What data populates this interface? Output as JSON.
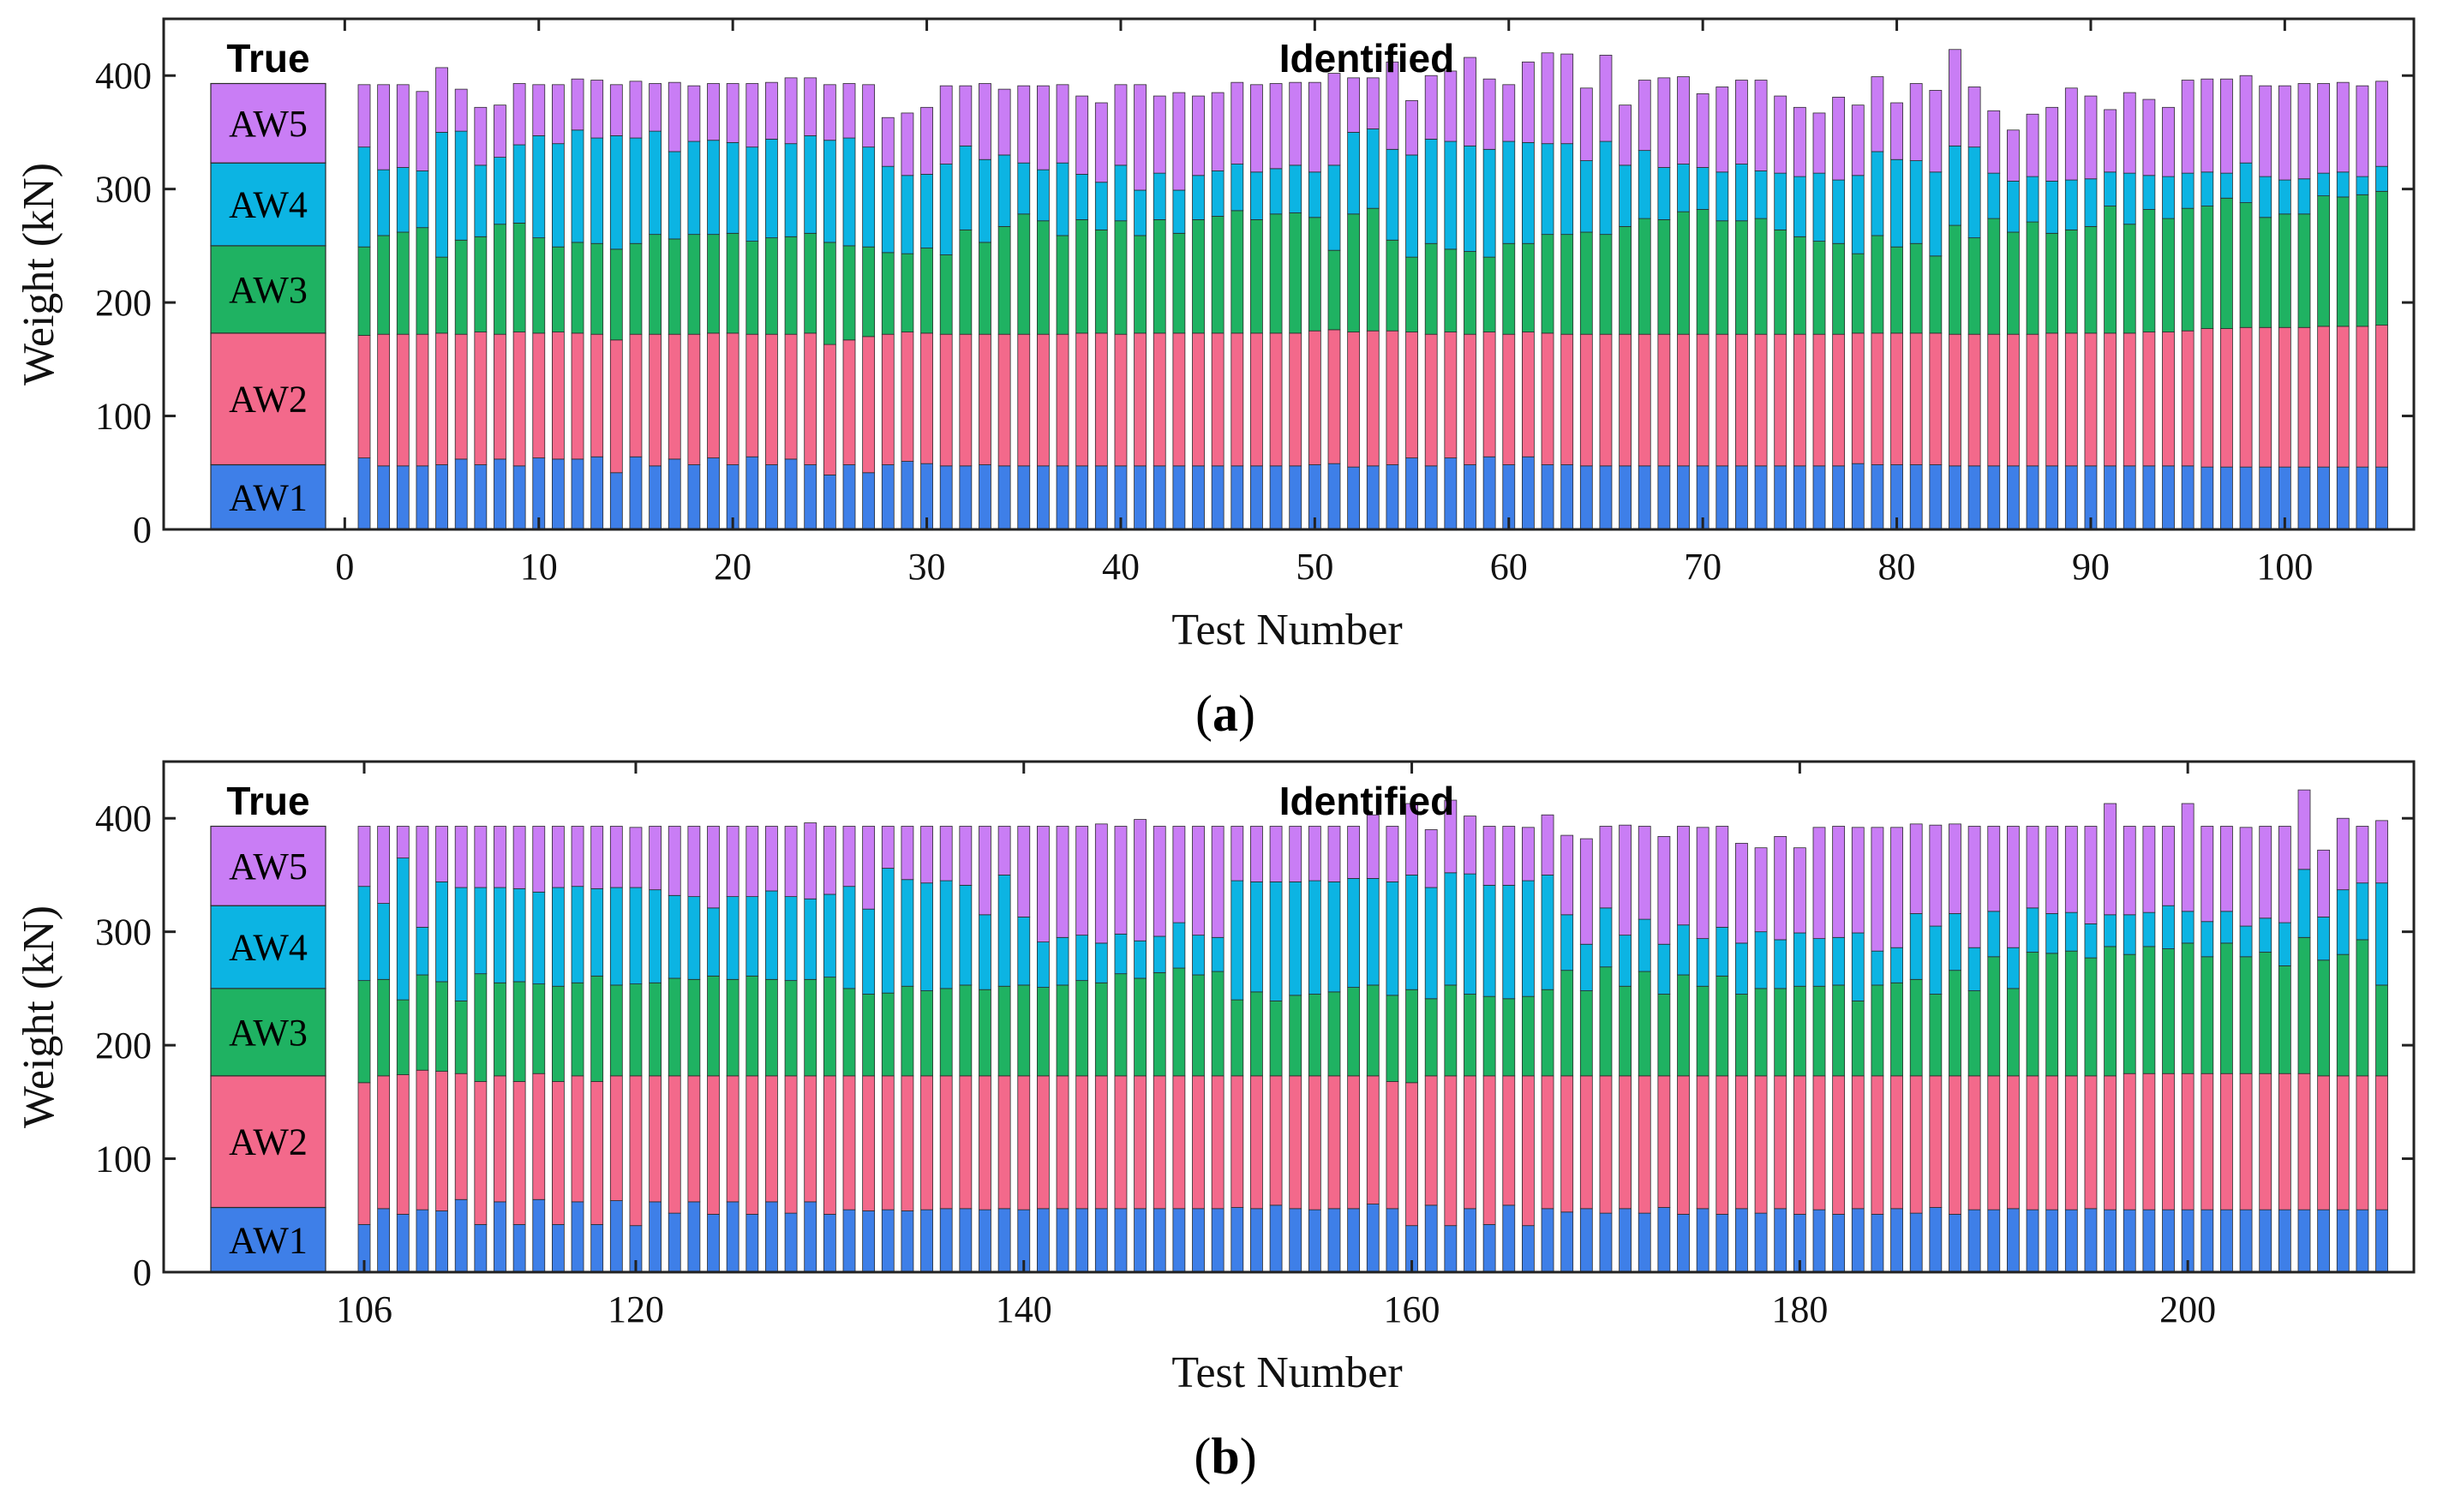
{
  "chart_data": [
    {
      "type": "bar",
      "stacked": true,
      "caption": "(a)",
      "caption_letter": "a",
      "true_title": "True",
      "identified_title": "Identified",
      "xlabel": "Test Number",
      "ylabel": "Weight (kN)",
      "ylim": [
        0,
        450
      ],
      "yticks": [
        0,
        100,
        200,
        300,
        400
      ],
      "xtick_labels": [
        "0",
        "10",
        "20",
        "30",
        "40",
        "50",
        "60",
        "70",
        "80",
        "90",
        "100"
      ],
      "xtick_values": [
        0,
        10,
        20,
        30,
        40,
        50,
        60,
        70,
        80,
        90,
        100
      ],
      "x_first": 1,
      "x_last": 105,
      "true_values": [
        57,
        116,
        77,
        73,
        70
      ],
      "series": [
        {
          "name": "AW1",
          "color": "#3e7fe8",
          "values": [
            63,
            56,
            56,
            56,
            57,
            62,
            57,
            62,
            56,
            63,
            62,
            62,
            64,
            50,
            64,
            56,
            62,
            57,
            63,
            57,
            64,
            57,
            62,
            57,
            48,
            57,
            50,
            57,
            60,
            58,
            56,
            56,
            57,
            56,
            56,
            56,
            56,
            56,
            56,
            56,
            56,
            56,
            56,
            56,
            56,
            56,
            56,
            56,
            56,
            57,
            58,
            55,
            56,
            57,
            63,
            56,
            63,
            57,
            64,
            57,
            64,
            57,
            57,
            56,
            56,
            56,
            56,
            56,
            56,
            56,
            56,
            56,
            56,
            56,
            56,
            56,
            56,
            58,
            57,
            57,
            57,
            57,
            56,
            56,
            56,
            56,
            56,
            56,
            56,
            56,
            56,
            56,
            56,
            56,
            56,
            55,
            55,
            55,
            55,
            55,
            55,
            55,
            55,
            55,
            55
          ]
        },
        {
          "name": "AW2",
          "color": "#f3698b",
          "values": [
            108,
            116,
            116,
            116,
            116,
            110,
            117,
            110,
            118,
            110,
            112,
            111,
            108,
            117,
            108,
            116,
            110,
            115,
            110,
            116,
            108,
            115,
            110,
            116,
            115,
            110,
            120,
            115,
            114,
            115,
            116,
            116,
            115,
            116,
            116,
            116,
            116,
            117,
            117,
            116,
            117,
            117,
            117,
            117,
            117,
            117,
            117,
            117,
            117,
            118,
            118,
            119,
            119,
            118,
            111,
            116,
            111,
            115,
            110,
            115,
            110,
            116,
            115,
            116,
            116,
            116,
            116,
            116,
            116,
            116,
            116,
            116,
            116,
            116,
            116,
            116,
            116,
            115,
            116,
            116,
            116,
            116,
            116,
            116,
            116,
            116,
            116,
            117,
            117,
            117,
            117,
            117,
            118,
            118,
            119,
            122,
            122,
            123,
            123,
            123,
            123,
            124,
            124,
            124,
            125
          ]
        },
        {
          "name": "AW3",
          "color": "#1fb262",
          "values": [
            78,
            87,
            90,
            94,
            67,
            83,
            84,
            97,
            96,
            84,
            75,
            80,
            80,
            80,
            80,
            88,
            84,
            88,
            87,
            88,
            82,
            85,
            86,
            88,
            90,
            83,
            79,
            72,
            69,
            75,
            70,
            92,
            81,
            95,
            106,
            100,
            87,
            100,
            91,
            100,
            86,
            100,
            88,
            100,
            103,
            108,
            100,
            105,
            106,
            100,
            70,
            104,
            108,
            80,
            66,
            80,
            73,
            73,
            66,
            80,
            78,
            87,
            88,
            90,
            88,
            95,
            102,
            101,
            108,
            110,
            100,
            100,
            102,
            92,
            86,
            82,
            80,
            70,
            86,
            76,
            79,
            68,
            96,
            85,
            102,
            90,
            99,
            88,
            91,
            94,
            112,
            96,
            108,
            100,
            108,
            108,
            115,
            110,
            97,
            100,
            100,
            115,
            114,
            116,
            118
          ]
        },
        {
          "name": "AW4",
          "color": "#0cb4e3",
          "values": [
            88,
            58,
            57,
            50,
            110,
            96,
            63,
            59,
            69,
            90,
            91,
            99,
            93,
            100,
            93,
            91,
            77,
            82,
            83,
            80,
            83,
            87,
            82,
            86,
            90,
            95,
            88,
            76,
            69,
            65,
            80,
            74,
            73,
            63,
            45,
            45,
            64,
            40,
            42,
            49,
            40,
            41,
            38,
            39,
            40,
            41,
            42,
            40,
            42,
            40,
            75,
            72,
            70,
            80,
            90,
            92,
            95,
            93,
            95,
            90,
            89,
            80,
            80,
            63,
            82,
            54,
            60,
            46,
            42,
            37,
            43,
            50,
            42,
            50,
            53,
            60,
            56,
            69,
            74,
            77,
            73,
            74,
            70,
            80,
            40,
            45,
            40,
            46,
            44,
            42,
            30,
            45,
            30,
            37,
            31,
            30,
            22,
            35,
            36,
            30,
            31,
            20,
            22,
            16,
            22
          ]
        },
        {
          "name": "AW5",
          "color": "#c97df5",
          "values": [
            55,
            75,
            73,
            70,
            57,
            37,
            51,
            46,
            54,
            45,
            52,
            45,
            51,
            45,
            50,
            42,
            61,
            49,
            50,
            52,
            56,
            50,
            58,
            51,
            49,
            48,
            55,
            43,
            55,
            59,
            69,
            53,
            67,
            58,
            68,
            74,
            69,
            69,
            70,
            71,
            93,
            68,
            86,
            70,
            69,
            72,
            77,
            75,
            73,
            79,
            81,
            48,
            45,
            77,
            48,
            56,
            62,
            78,
            62,
            50,
            71,
            80,
            79,
            64,
            76,
            53,
            62,
            79,
            77,
            65,
            75,
            74,
            80,
            68,
            61,
            53,
            73,
            62,
            66,
            50,
            68,
            72,
            85,
            53,
            55,
            45,
            55,
            65,
            81,
            73,
            55,
            71,
            67,
            61,
            82,
            82,
            83,
            77,
            80,
            83,
            84,
            79,
            79,
            80,
            75
          ]
        }
      ]
    },
    {
      "type": "bar",
      "stacked": true,
      "caption": "(b)",
      "caption_letter": "b",
      "true_title": "True",
      "identified_title": "Identified",
      "xlabel": "Test Number",
      "ylabel": "Weight (kN)",
      "ylim": [
        0,
        450
      ],
      "yticks": [
        0,
        100,
        200,
        300,
        400
      ],
      "xtick_labels": [
        "106",
        "120",
        "140",
        "160",
        "180",
        "200"
      ],
      "xtick_values": [
        106,
        120,
        140,
        160,
        180,
        200
      ],
      "x_first": 106,
      "x_last": 210,
      "true_values": [
        57,
        116,
        77,
        73,
        70
      ],
      "series": [
        {
          "name": "AW1",
          "color": "#3e7fe8",
          "values": [
            42,
            56,
            51,
            55,
            54,
            64,
            42,
            62,
            42,
            64,
            42,
            62,
            42,
            63,
            41,
            62,
            52,
            62,
            51,
            62,
            51,
            62,
            52,
            62,
            51,
            55,
            54,
            55,
            54,
            55,
            56,
            56,
            55,
            56,
            55,
            56,
            56,
            56,
            56,
            56,
            56,
            56,
            56,
            56,
            56,
            57,
            56,
            59,
            56,
            55,
            56,
            56,
            60,
            56,
            41,
            59,
            41,
            56,
            42,
            59,
            41,
            56,
            53,
            56,
            52,
            56,
            52,
            57,
            51,
            56,
            51,
            56,
            52,
            56,
            51,
            55,
            51,
            56,
            51,
            56,
            52,
            57,
            51,
            55,
            55,
            56,
            55,
            55,
            55,
            56,
            55,
            55,
            55,
            55,
            55,
            55,
            55,
            55,
            55,
            55,
            55,
            55,
            55,
            55,
            55
          ]
        },
        {
          "name": "AW2",
          "color": "#f3698b",
          "values": [
            125,
            117,
            123,
            123,
            123,
            111,
            126,
            111,
            126,
            111,
            126,
            111,
            126,
            110,
            132,
            111,
            121,
            111,
            122,
            111,
            122,
            111,
            121,
            111,
            122,
            118,
            119,
            118,
            119,
            118,
            117,
            117,
            118,
            117,
            118,
            117,
            117,
            117,
            117,
            117,
            117,
            117,
            117,
            117,
            117,
            116,
            117,
            114,
            117,
            118,
            117,
            117,
            113,
            112,
            126,
            114,
            132,
            117,
            131,
            114,
            132,
            117,
            120,
            117,
            121,
            117,
            121,
            116,
            122,
            117,
            122,
            117,
            121,
            117,
            122,
            118,
            122,
            117,
            122,
            117,
            121,
            116,
            122,
            118,
            118,
            117,
            118,
            118,
            118,
            117,
            118,
            120,
            120,
            120,
            120,
            120,
            120,
            120,
            120,
            120,
            120,
            118,
            118,
            118,
            118
          ]
        },
        {
          "name": "AW3",
          "color": "#1fb262",
          "values": [
            90,
            85,
            66,
            84,
            79,
            64,
            95,
            82,
            88,
            79,
            84,
            82,
            93,
            80,
            81,
            82,
            86,
            85,
            88,
            85,
            88,
            85,
            84,
            85,
            87,
            77,
            72,
            73,
            79,
            75,
            77,
            80,
            76,
            79,
            80,
            78,
            80,
            84,
            82,
            90,
            86,
            91,
            95,
            89,
            92,
            67,
            74,
            66,
            71,
            72,
            74,
            78,
            80,
            76,
            82,
            68,
            80,
            72,
            70,
            68,
            70,
            76,
            93,
            75,
            96,
            79,
            92,
            72,
            89,
            79,
            88,
            72,
            77,
            77,
            79,
            79,
            80,
            66,
            80,
            82,
            85,
            72,
            93,
            75,
            105,
            77,
            109,
            108,
            110,
            104,
            114,
            105,
            112,
            110,
            115,
            103,
            115,
            103,
            107,
            95,
            120,
            102,
            107,
            120,
            80
          ]
        },
        {
          "name": "AW4",
          "color": "#0cb4e3",
          "values": [
            83,
            67,
            125,
            42,
            88,
            100,
            76,
            84,
            82,
            81,
            87,
            85,
            77,
            86,
            85,
            82,
            73,
            73,
            60,
            73,
            70,
            78,
            74,
            71,
            73,
            90,
            75,
            110,
            94,
            95,
            95,
            88,
            66,
            98,
            60,
            40,
            42,
            40,
            35,
            35,
            33,
            32,
            40,
            35,
            30,
            105,
            97,
            105,
            100,
            100,
            97,
            96,
            94,
            100,
            101,
            98,
            99,
            106,
            98,
            100,
            102,
            101,
            49,
            41,
            52,
            45,
            46,
            44,
            44,
            42,
            43,
            45,
            50,
            43,
            47,
            42,
            42,
            60,
            30,
            31,
            58,
            60,
            50,
            38,
            40,
            36,
            39,
            35,
            34,
            30,
            28,
            35,
            30,
            38,
            28,
            31,
            28,
            27,
            30,
            38,
            60,
            38,
            57,
            50,
            90
          ]
        },
        {
          "name": "AW5",
          "color": "#c97df5",
          "values": [
            53,
            68,
            28,
            89,
            49,
            54,
            54,
            54,
            55,
            58,
            54,
            53,
            55,
            54,
            53,
            56,
            61,
            62,
            72,
            62,
            62,
            57,
            62,
            67,
            60,
            53,
            73,
            37,
            47,
            50,
            48,
            52,
            78,
            43,
            80,
            102,
            98,
            96,
            105,
            95,
            107,
            97,
            85,
            96,
            98,
            48,
            49,
            49,
            49,
            48,
            49,
            46,
            56,
            49,
            63,
            51,
            64,
            51,
            52,
            52,
            47,
            53,
            70,
            93,
            72,
            97,
            82,
            95,
            87,
            98,
            89,
            88,
            74,
            91,
            75,
            98,
            98,
            93,
            109,
            106,
            79,
            89,
            79,
            107,
            75,
            107,
            72,
            77,
            76,
            86,
            98,
            78,
            76,
            70,
            95,
            84,
            75,
            87,
            81,
            85,
            70,
            59,
            63,
            50,
            55
          ]
        }
      ]
    }
  ]
}
